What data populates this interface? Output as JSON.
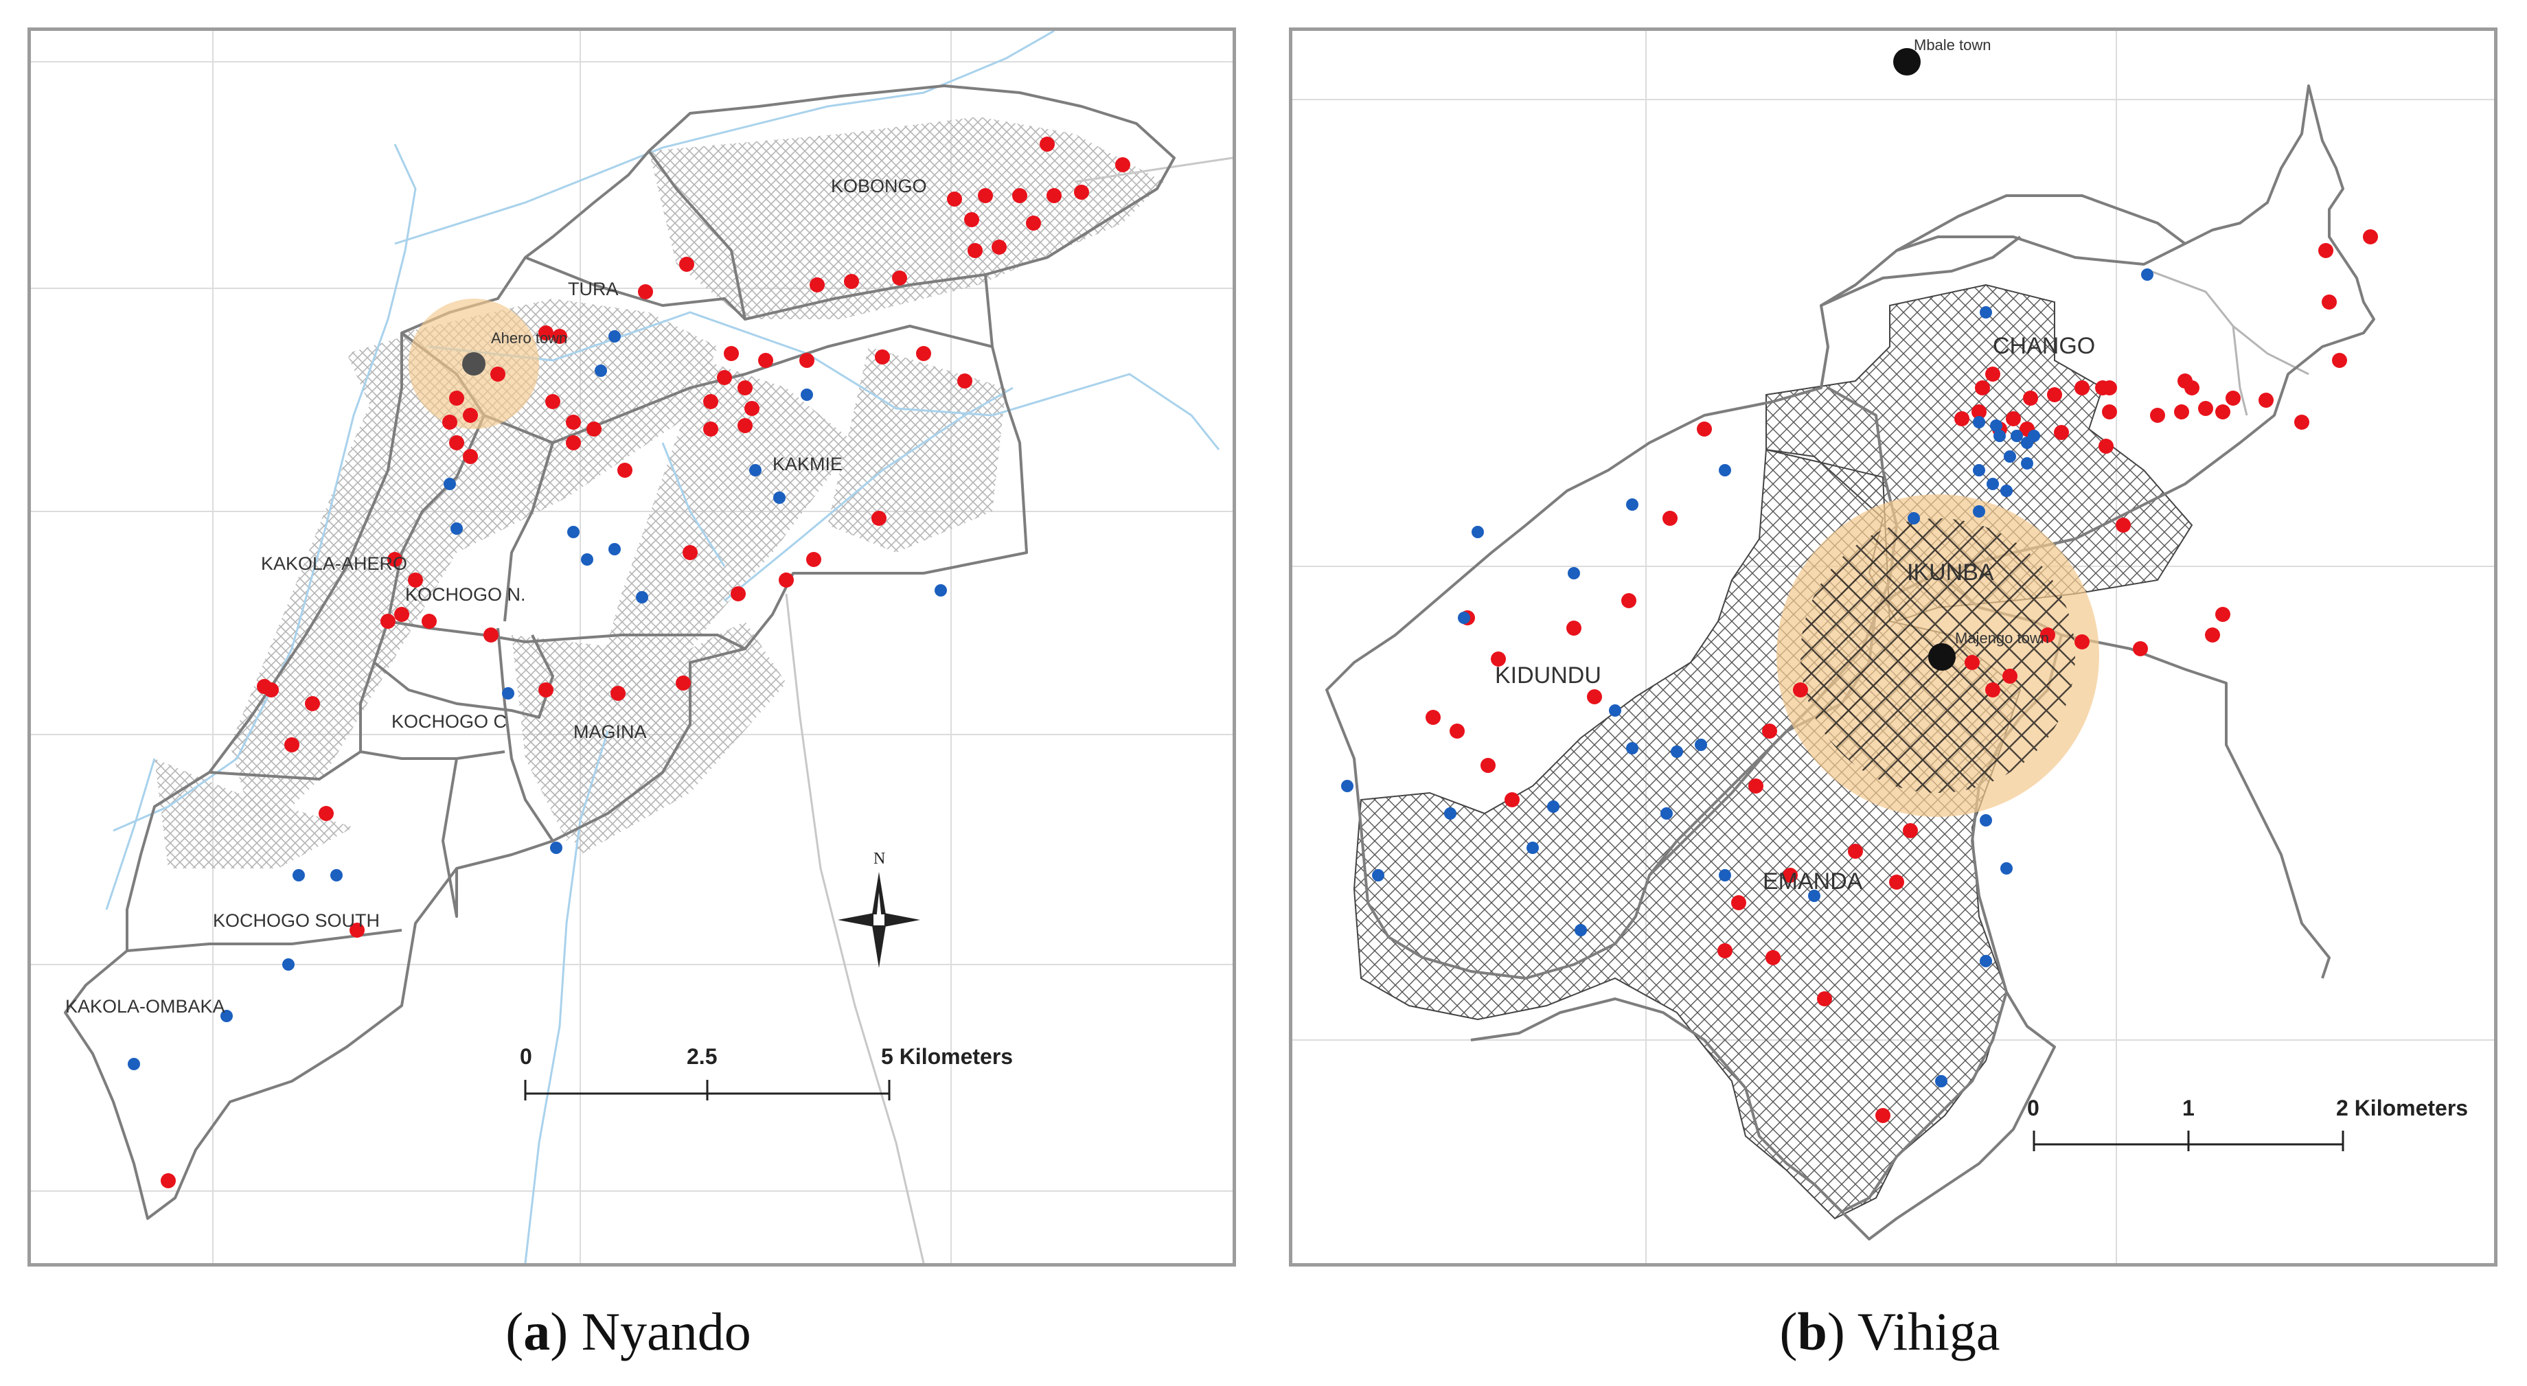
{
  "panels": [
    {
      "id": "a",
      "caption_letter": "a",
      "caption_name": "Nyando",
      "town_label": "Ahero town",
      "region_labels": [
        "KOBONGO",
        "TURA",
        "KAKMIE",
        "KAKOLA-AHERO",
        "KOCHOGO N.",
        "KOCHOGO C",
        "MAGINA",
        "KOCHOGO SOUTH",
        "KAKOLA-OMBAKA"
      ],
      "north_label": "N",
      "scale": {
        "ticks": [
          "0",
          "2.5",
          "5 Kilometers"
        ]
      }
    },
    {
      "id": "b",
      "caption_letter": "b",
      "caption_name": "Vihiga",
      "town_labels": [
        "Mbale town",
        "Majengo town"
      ],
      "region_labels": [
        "CHANGO",
        "IKUNBA",
        "KIDUNDU",
        "EMANDA"
      ],
      "scale": {
        "ticks": [
          "0",
          "1",
          "2 Kilometers"
        ]
      }
    }
  ],
  "colors": {
    "red_point": "#e8121b",
    "blue_point": "#1b5fbf",
    "river": "#a9d2ec",
    "buffer": "#f3c98f",
    "boundary": "#7d7d7d",
    "grid": "#d9d9d9",
    "frame": "#9c9c9c"
  }
}
